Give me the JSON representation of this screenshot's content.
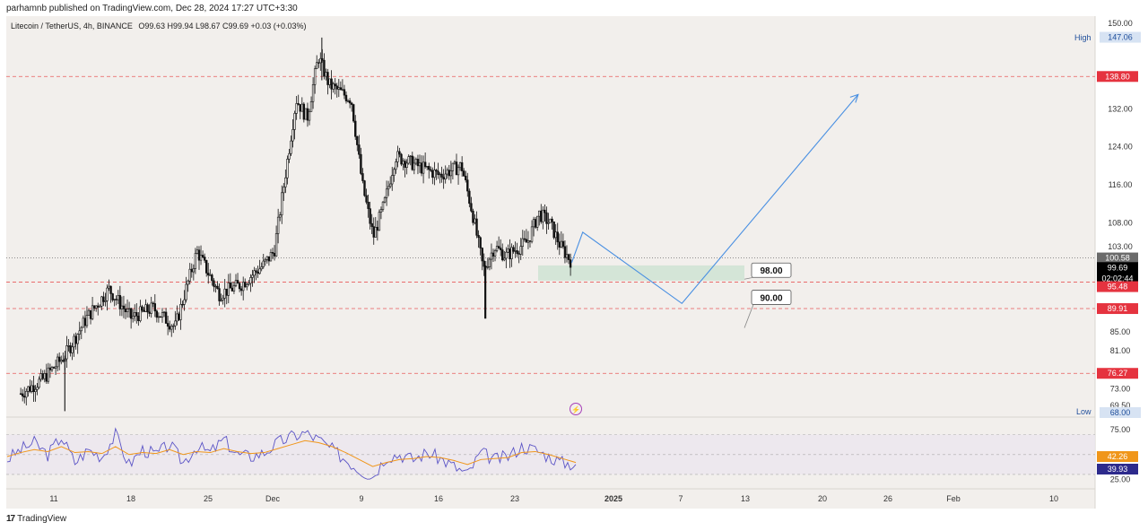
{
  "header": {
    "publisher": "parhamnb published on TradingView.com, Dec 28, 2024 17:27 UTC+3:30"
  },
  "legend": {
    "symbol": "Litecoin / TetherUS, 4h, BINANCE",
    "ohlc": "O99.63  H99.94  L98.67  C99.69  +0.03 (+0.03%)"
  },
  "footer": {
    "brand": "TradingView",
    "logo_mark": "17"
  },
  "colors": {
    "up": "#111111",
    "down": "#111111",
    "rsi": "#5b54c6",
    "rsi_ma": "#f0961a",
    "projection": "#4a90e2",
    "zone": "#cfe3d3",
    "level": "#e85a5a",
    "price_tag": "#000000"
  },
  "chart_data": [
    {
      "type": "candlestick",
      "title": "Litecoin / TetherUS, 4h, BINANCE",
      "ylim": [
        68,
        150
      ],
      "y_ticks": [
        "150.00",
        "132.00",
        "124.00",
        "116.00",
        "108.00",
        "103.00",
        "85.00",
        "81.00",
        "73.00",
        "69.50"
      ],
      "x_ticks": [
        "11",
        "18",
        "25",
        "Dec",
        "9",
        "16",
        "23",
        "2025",
        "7",
        "13",
        "20",
        "26",
        "Feb",
        "10"
      ],
      "high_label": "High",
      "high_value": "147.06",
      "low_label": "Low",
      "low_value": "68.00",
      "price_tags": [
        {
          "value": 138.8,
          "label": "138.80",
          "style": "red"
        },
        {
          "value": 100.58,
          "label": "100.58",
          "style": "gray"
        },
        {
          "value": 99.69,
          "label": "99.69",
          "sub": "02:02:44",
          "style": "black"
        },
        {
          "value": 95.48,
          "label": "95.48",
          "style": "red"
        },
        {
          "value": 89.91,
          "label": "89.91",
          "style": "red"
        },
        {
          "value": 76.27,
          "label": "76.27",
          "style": "red"
        }
      ],
      "horizontal_levels": [
        138.8,
        95.48,
        89.91,
        76.27
      ],
      "last_price_line": 100.58,
      "support_zone": [
        95.8,
        99.0
      ],
      "annotations": [
        {
          "label": "98.00",
          "value": 98.0
        },
        {
          "label": "90.00",
          "value": 90.0
        }
      ],
      "projection_path": [
        {
          "x": "Dec 28",
          "y": 99.6
        },
        {
          "x": "Dec 29",
          "y": 106
        },
        {
          "x": "Jan 7",
          "y": 91
        },
        {
          "x": "Jan 23",
          "y": 135
        }
      ],
      "anchor_points": [
        {
          "x": "Nov 8",
          "y": 72
        },
        {
          "x": "Nov 10",
          "y": 75
        },
        {
          "x": "Nov 12",
          "y": 80
        },
        {
          "x": "Nov 14",
          "y": 88
        },
        {
          "x": "Nov 16",
          "y": 94
        },
        {
          "x": "Nov 18",
          "y": 88
        },
        {
          "x": "Nov 20",
          "y": 90
        },
        {
          "x": "Nov 22",
          "y": 86
        },
        {
          "x": "Nov 24",
          "y": 102
        },
        {
          "x": "Nov 26",
          "y": 93
        },
        {
          "x": "Nov 28",
          "y": 95
        },
        {
          "x": "Nov 30",
          "y": 99
        },
        {
          "x": "Dec 1",
          "y": 102
        },
        {
          "x": "Dec 2",
          "y": 118
        },
        {
          "x": "Dec 3",
          "y": 134
        },
        {
          "x": "Dec 4",
          "y": 130
        },
        {
          "x": "Dec 5",
          "y": 143
        },
        {
          "x": "Dec 6",
          "y": 137
        },
        {
          "x": "Dec 8",
          "y": 134
        },
        {
          "x": "Dec 9",
          "y": 116
        },
        {
          "x": "Dec 10",
          "y": 105
        },
        {
          "x": "Dec 11",
          "y": 112
        },
        {
          "x": "Dec 12",
          "y": 122
        },
        {
          "x": "Dec 14",
          "y": 120
        },
        {
          "x": "Dec 16",
          "y": 118
        },
        {
          "x": "Dec 18",
          "y": 120
        },
        {
          "x": "Dec 19",
          "y": 110
        },
        {
          "x": "Dec 20",
          "y": 98
        },
        {
          "x": "Dec 21",
          "y": 103
        },
        {
          "x": "Dec 22",
          "y": 101
        },
        {
          "x": "Dec 24",
          "y": 104
        },
        {
          "x": "Dec 25",
          "y": 110
        },
        {
          "x": "Dec 26",
          "y": 108
        },
        {
          "x": "Dec 27",
          "y": 103
        },
        {
          "x": "Dec 28",
          "y": 99.7
        }
      ]
    },
    {
      "type": "line",
      "title": "RSI",
      "ylim": [
        20,
        85
      ],
      "y_ticks": [
        "75.00",
        "25.00"
      ],
      "value_tags": [
        {
          "label": "42.26",
          "value": 42.26,
          "style": "orange"
        },
        {
          "label": "39.93",
          "value": 39.93,
          "style": "purple"
        }
      ],
      "bands": [
        70,
        50,
        30
      ],
      "series": [
        {
          "values": [
            45,
            55,
            62,
            50,
            68,
            42,
            55,
            48,
            70,
            40,
            55,
            50,
            60,
            42,
            58,
            52,
            65,
            50,
            48,
            52,
            62,
            68,
            72,
            65,
            55,
            45,
            35,
            28,
            48,
            50,
            45,
            52,
            46,
            38,
            30,
            52,
            45,
            48,
            58,
            55,
            48,
            42,
            40
          ]
        },
        {
          "values": [
            48,
            52,
            55,
            53,
            58,
            52,
            53,
            51,
            58,
            50,
            52,
            51,
            55,
            50,
            53,
            52,
            56,
            53,
            51,
            52,
            56,
            60,
            64,
            62,
            58,
            52,
            45,
            38,
            42,
            45,
            46,
            48,
            47,
            44,
            40,
            45,
            46,
            47,
            52,
            53,
            50,
            46,
            42
          ]
        }
      ]
    }
  ]
}
